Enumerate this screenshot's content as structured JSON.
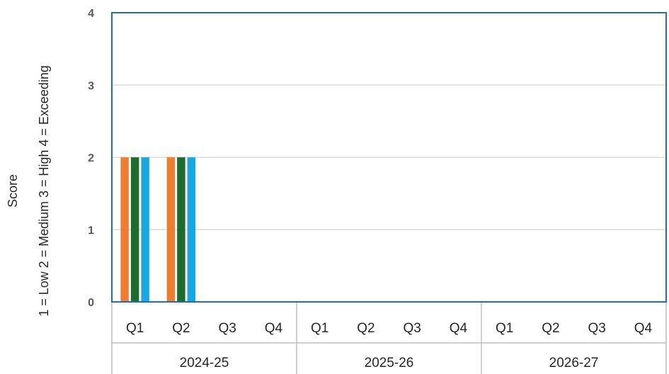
{
  "chart_data": {
    "type": "bar",
    "title": "",
    "ylabel_lines": [
      "Score",
      "1 = Low   2 = Medium   3 = High  4 = Exceeding"
    ],
    "ylim": [
      0,
      4
    ],
    "yticks": [
      "0",
      "1",
      "2",
      "3",
      "4"
    ],
    "grid": true,
    "groups": [
      {
        "label": "2024-25",
        "quarters": [
          "Q1",
          "Q2",
          "Q3",
          "Q4"
        ]
      },
      {
        "label": "2025-26",
        "quarters": [
          "Q1",
          "Q2",
          "Q3",
          "Q4"
        ]
      },
      {
        "label": "2026-27",
        "quarters": [
          "Q1",
          "Q2",
          "Q3",
          "Q4"
        ]
      }
    ],
    "series": [
      {
        "color": "#ED7D31",
        "values": [
          2,
          2,
          0,
          0,
          0,
          0,
          0,
          0,
          0,
          0,
          0,
          0
        ]
      },
      {
        "color": "#1E6B2E",
        "values": [
          2,
          2,
          0,
          0,
          0,
          0,
          0,
          0,
          0,
          0,
          0,
          0
        ]
      },
      {
        "color": "#1AA7E0",
        "values": [
          2,
          2,
          0,
          0,
          0,
          0,
          0,
          0,
          0,
          0,
          0,
          0
        ]
      }
    ],
    "colors": {
      "frame": "#1F6FB0",
      "grid": "#D9D9D9",
      "axis": "#BFBFBF"
    }
  }
}
